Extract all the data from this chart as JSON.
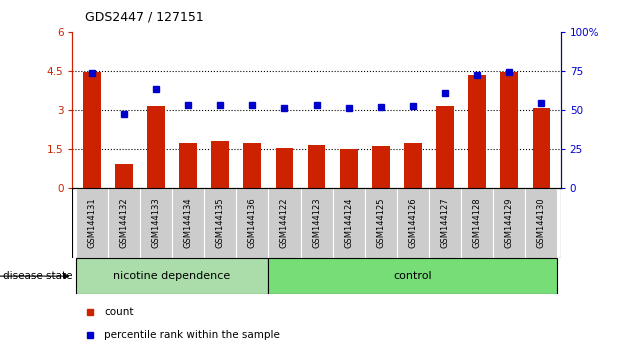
{
  "title": "GDS2447 / 127151",
  "samples": [
    "GSM144131",
    "GSM144132",
    "GSM144133",
    "GSM144134",
    "GSM144135",
    "GSM144136",
    "GSM144122",
    "GSM144123",
    "GSM144124",
    "GSM144125",
    "GSM144126",
    "GSM144127",
    "GSM144128",
    "GSM144129",
    "GSM144130"
  ],
  "bar_values": [
    4.45,
    0.9,
    3.15,
    1.7,
    1.8,
    1.7,
    1.52,
    1.65,
    1.48,
    1.6,
    1.7,
    3.15,
    4.35,
    4.45,
    3.05
  ],
  "blue_values": [
    4.4,
    2.85,
    3.8,
    3.2,
    3.2,
    3.2,
    3.05,
    3.2,
    3.05,
    3.1,
    3.15,
    3.65,
    4.35,
    4.45,
    3.25
  ],
  "bar_color": "#cc2200",
  "blue_color": "#0000cc",
  "ylim_left": [
    0,
    6
  ],
  "ylim_right": [
    0,
    100
  ],
  "yticks_left": [
    0,
    1.5,
    3.0,
    4.5,
    6.0
  ],
  "ytick_labels_left": [
    "0",
    "1.5",
    "3",
    "4.5",
    "6"
  ],
  "yticks_right": [
    0,
    25,
    50,
    75,
    100
  ],
  "ytick_labels_right": [
    "0",
    "25",
    "50",
    "75",
    "100%"
  ],
  "groups": [
    {
      "label": "nicotine dependence",
      "start": 0,
      "end": 6
    },
    {
      "label": "control",
      "start": 6,
      "end": 15
    }
  ],
  "group_colors": [
    "#aaddaa",
    "#77dd77"
  ],
  "xtick_bg_color": "#cccccc",
  "disease_state_label": "disease state",
  "legend_items": [
    {
      "label": "count",
      "color": "#cc2200"
    },
    {
      "label": "percentile rank within the sample",
      "color": "#0000cc"
    }
  ],
  "background_plot": "white"
}
